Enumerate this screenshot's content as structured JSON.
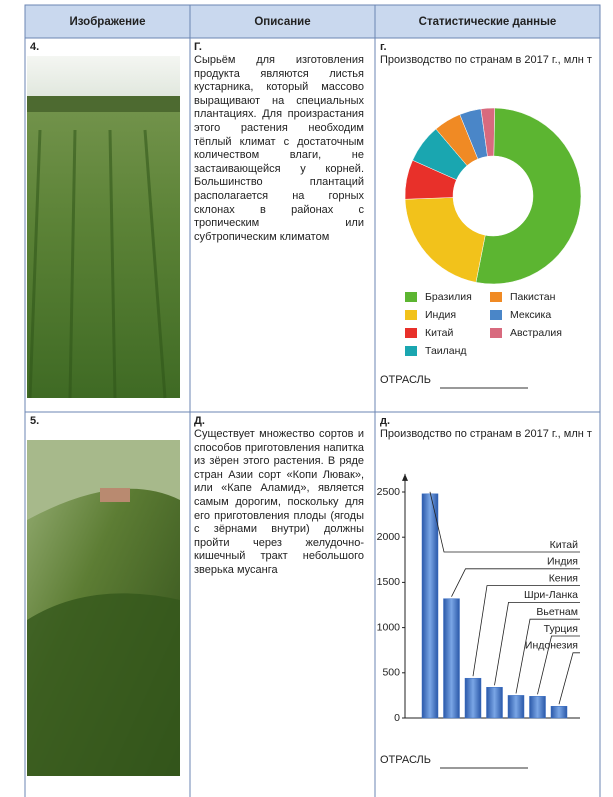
{
  "table": {
    "headers": [
      "Изображение",
      "Описание",
      "Статистические данные"
    ],
    "rows": [
      {
        "number": "4.",
        "letter": "Г.",
        "description": "Сырьём для изготовления продукта являются листья кустарника, который массово выращивают на специальных плантациях. Для произрастания этого растения необходим тёплый климат с достаточным количеством влаги, не застаивающейся у корней. Большинство плантаций располагается на горных склонах в районах с тропическим или субтропическим климатом"
      },
      {
        "number": "5.",
        "letter": "Д.",
        "description": "Существует множество сортов и способов приготовления напитка из зёрен этого растения. В ряде стран Азии сорт «Копи Лювак», или «Капе Аламид», является самым дорогим, поскольку для его приготовления плоды (ягоды с зёрнами внутри) должны пройти через желудочно-кишечный тракт небольшого зверька мусанга"
      }
    ]
  },
  "chart_data": [
    {
      "type": "pie",
      "label": "г.",
      "title": "Производство по странам в 2017 г., млн т",
      "categories": [
        "Бразилия",
        "Индия",
        "Китай",
        "Таиланд",
        "Пакистан",
        "Мексика",
        "Австралия"
      ],
      "values": [
        758,
        306,
        104,
        102,
        73,
        57,
        36
      ],
      "colors": [
        "#5cb531",
        "#f2c21b",
        "#e8302a",
        "#1aa6b0",
        "#f08a24",
        "#4a86c8",
        "#d86a7e"
      ],
      "answer_label": "ОТРАСЛЬ"
    },
    {
      "type": "bar",
      "label": "д.",
      "title": "Производство по странам в 2017 г., млн т",
      "categories": [
        "Китай",
        "Индия",
        "Кения",
        "Шри-Ланка",
        "Вьетнам",
        "Турция",
        "Индонезия"
      ],
      "values": [
        2480,
        1320,
        440,
        340,
        250,
        240,
        130
      ],
      "color": "#3a6fc4",
      "ylim": [
        0,
        2700
      ],
      "yticks": [
        0,
        500,
        1000,
        1500,
        2000,
        2500
      ],
      "answer_label": "ОТРАСЛЬ"
    }
  ]
}
